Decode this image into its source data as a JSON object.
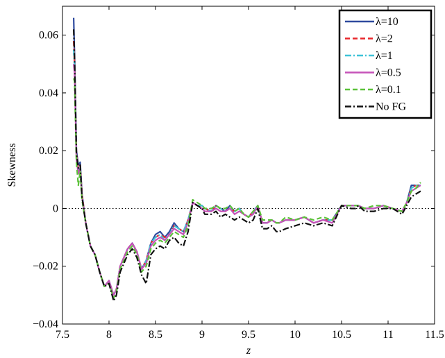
{
  "chart_data": {
    "type": "line",
    "xlabel": "z",
    "ylabel": "Skewness",
    "xlim": [
      7.5,
      11.5
    ],
    "ylim": [
      -0.04,
      0.07
    ],
    "x_ticks": [
      "7.5",
      "8",
      "8.5",
      "9",
      "9.5",
      "10",
      "10.5",
      "11",
      "11.5"
    ],
    "x_tick_values": [
      7.5,
      8,
      8.5,
      9,
      9.5,
      10,
      10.5,
      11,
      11.5
    ],
    "y_ticks": [
      "−0.04",
      "−0.02",
      "0",
      "0.02",
      "0.04",
      "0.06"
    ],
    "y_tick_values": [
      -0.04,
      -0.02,
      0,
      0.02,
      0.04,
      0.06
    ],
    "grid": false,
    "legend_position": "top-right",
    "reference_line": {
      "y": 0,
      "style": "dotted",
      "color": "#000000"
    },
    "series": [
      {
        "name": "λ=10",
        "color": "#2e4a9e",
        "dash": "solid",
        "x": [
          7.62,
          7.63,
          7.65,
          7.67,
          7.69,
          7.71,
          7.75,
          7.8,
          7.85,
          7.9,
          7.95,
          8.0,
          8.05,
          8.08,
          8.12,
          8.2,
          8.25,
          8.3,
          8.35,
          8.4,
          8.45,
          8.5,
          8.55,
          8.6,
          8.65,
          8.7,
          8.75,
          8.8,
          8.85,
          8.9,
          8.95,
          9.0,
          9.03,
          9.1,
          9.15,
          9.2,
          9.25,
          9.3,
          9.35,
          9.4,
          9.45,
          9.5,
          9.55,
          9.6,
          9.65,
          9.7,
          9.75,
          9.8,
          9.83,
          9.9,
          10.0,
          10.1,
          10.2,
          10.3,
          10.4,
          10.5,
          10.6,
          10.65,
          10.68,
          10.75,
          10.85,
          10.95,
          11.05,
          11.15,
          11.2,
          11.25,
          11.3,
          11.35
        ],
        "values": [
          0.066,
          0.053,
          0.02,
          0.015,
          0.016,
          0.005,
          -0.005,
          -0.013,
          -0.016,
          -0.022,
          -0.027,
          -0.025,
          -0.03,
          -0.028,
          -0.02,
          -0.014,
          -0.012,
          -0.015,
          -0.021,
          -0.018,
          -0.012,
          -0.009,
          -0.008,
          -0.01,
          -0.008,
          -0.005,
          -0.007,
          -0.008,
          -0.004,
          0.002,
          0.001,
          0.001,
          0.0,
          -0.001,
          0.001,
          0.0,
          -0.001,
          0.001,
          -0.001,
          0.0,
          -0.002,
          -0.003,
          -0.001,
          0.001,
          -0.005,
          -0.005,
          -0.004,
          -0.005,
          -0.005,
          -0.004,
          -0.004,
          -0.003,
          -0.005,
          -0.004,
          -0.004,
          0.001,
          0.001,
          0.001,
          0.001,
          0.0,
          0.0,
          0.001,
          0.0,
          -0.001,
          0.002,
          0.008,
          0.008,
          0.008
        ]
      },
      {
        "name": "λ=2",
        "color": "#e8262a",
        "dash": "dashed",
        "x": [
          7.62,
          7.63,
          7.65,
          7.67,
          7.69,
          7.71,
          7.75,
          7.8,
          7.85,
          7.9,
          7.95,
          8.0,
          8.05,
          8.08,
          8.12,
          8.2,
          8.25,
          8.3,
          8.35,
          8.4,
          8.45,
          8.5,
          8.55,
          8.6,
          8.65,
          8.7,
          8.75,
          8.8,
          8.85,
          8.9,
          8.95,
          9.0,
          9.03,
          9.1,
          9.15,
          9.2,
          9.25,
          9.3,
          9.35,
          9.4,
          9.45,
          9.5,
          9.55,
          9.6,
          9.65,
          9.7,
          9.75,
          9.8,
          9.83,
          9.9,
          10.0,
          10.1,
          10.2,
          10.3,
          10.4,
          10.5,
          10.6,
          10.65,
          10.68,
          10.75,
          10.85,
          10.95,
          11.05,
          11.15,
          11.2,
          11.25,
          11.3,
          11.35
        ],
        "values": [
          0.058,
          0.05,
          0.019,
          0.014,
          0.015,
          0.005,
          -0.005,
          -0.013,
          -0.016,
          -0.022,
          -0.027,
          -0.025,
          -0.03,
          -0.028,
          -0.02,
          -0.014,
          -0.012,
          -0.015,
          -0.021,
          -0.018,
          -0.012,
          -0.01,
          -0.009,
          -0.01,
          -0.009,
          -0.006,
          -0.007,
          -0.008,
          -0.004,
          0.002,
          0.001,
          0.001,
          0.0,
          -0.001,
          0.001,
          0.0,
          -0.001,
          0.0,
          -0.001,
          0.0,
          -0.002,
          -0.003,
          -0.001,
          0.001,
          -0.005,
          -0.005,
          -0.004,
          -0.005,
          -0.005,
          -0.004,
          -0.004,
          -0.003,
          -0.005,
          -0.004,
          -0.004,
          0.001,
          0.001,
          0.001,
          0.001,
          0.0,
          0.0,
          0.001,
          0.0,
          -0.001,
          0.002,
          0.007,
          0.008,
          0.008
        ]
      },
      {
        "name": "λ=1",
        "color": "#3fc3d8",
        "dash": "dashdot",
        "x": [
          7.62,
          7.63,
          7.65,
          7.67,
          7.69,
          7.71,
          7.75,
          7.8,
          7.85,
          7.9,
          7.95,
          8.0,
          8.05,
          8.08,
          8.12,
          8.2,
          8.25,
          8.3,
          8.35,
          8.4,
          8.45,
          8.5,
          8.55,
          8.6,
          8.65,
          8.7,
          8.75,
          8.8,
          8.85,
          8.9,
          8.95,
          9.0,
          9.03,
          9.1,
          9.15,
          9.2,
          9.25,
          9.3,
          9.35,
          9.4,
          9.45,
          9.5,
          9.55,
          9.6,
          9.65,
          9.7,
          9.75,
          9.8,
          9.83,
          9.9,
          10.0,
          10.1,
          10.2,
          10.3,
          10.4,
          10.5,
          10.6,
          10.65,
          10.68,
          10.75,
          10.85,
          10.95,
          11.05,
          11.15,
          11.2,
          11.25,
          11.3,
          11.35
        ],
        "values": [
          0.055,
          0.049,
          0.018,
          0.013,
          0.015,
          0.004,
          -0.005,
          -0.013,
          -0.016,
          -0.022,
          -0.027,
          -0.025,
          -0.03,
          -0.028,
          -0.02,
          -0.014,
          -0.012,
          -0.015,
          -0.021,
          -0.018,
          -0.012,
          -0.01,
          -0.009,
          -0.011,
          -0.009,
          -0.006,
          -0.007,
          -0.008,
          -0.004,
          0.002,
          0.001,
          0.001,
          0.0,
          -0.001,
          0.001,
          0.0,
          -0.001,
          0.0,
          -0.001,
          0.0,
          -0.002,
          -0.003,
          -0.001,
          0.001,
          -0.005,
          -0.005,
          -0.004,
          -0.005,
          -0.005,
          -0.004,
          -0.004,
          -0.003,
          -0.005,
          -0.004,
          -0.004,
          0.001,
          0.001,
          0.001,
          0.001,
          0.0,
          0.0,
          0.001,
          0.0,
          -0.001,
          0.002,
          0.007,
          0.008,
          0.008
        ]
      },
      {
        "name": "λ=0.5",
        "color": "#c552b8",
        "dash": "solid",
        "x": [
          7.62,
          7.63,
          7.65,
          7.67,
          7.69,
          7.71,
          7.75,
          7.8,
          7.85,
          7.9,
          7.95,
          8.0,
          8.05,
          8.08,
          8.12,
          8.2,
          8.25,
          8.3,
          8.35,
          8.4,
          8.45,
          8.5,
          8.55,
          8.6,
          8.65,
          8.7,
          8.75,
          8.8,
          8.85,
          8.9,
          8.95,
          9.0,
          9.03,
          9.1,
          9.15,
          9.2,
          9.25,
          9.3,
          9.35,
          9.4,
          9.45,
          9.5,
          9.55,
          9.6,
          9.65,
          9.7,
          9.75,
          9.8,
          9.83,
          9.9,
          10.0,
          10.1,
          10.2,
          10.3,
          10.4,
          10.5,
          10.6,
          10.65,
          10.68,
          10.75,
          10.85,
          10.95,
          11.05,
          11.15,
          11.2,
          11.25,
          11.3,
          11.35
        ],
        "values": [
          0.05,
          0.047,
          0.017,
          0.012,
          0.014,
          0.004,
          -0.005,
          -0.013,
          -0.016,
          -0.022,
          -0.027,
          -0.025,
          -0.03,
          -0.028,
          -0.02,
          -0.014,
          -0.012,
          -0.015,
          -0.021,
          -0.019,
          -0.013,
          -0.011,
          -0.01,
          -0.011,
          -0.009,
          -0.007,
          -0.008,
          -0.009,
          -0.005,
          0.002,
          0.001,
          0.0,
          -0.001,
          -0.001,
          0.0,
          -0.001,
          -0.001,
          0.0,
          -0.002,
          -0.001,
          -0.002,
          -0.003,
          -0.002,
          0.001,
          -0.005,
          -0.005,
          -0.004,
          -0.005,
          -0.005,
          -0.004,
          -0.004,
          -0.003,
          -0.005,
          -0.004,
          -0.005,
          0.001,
          0.001,
          0.001,
          0.001,
          0.0,
          0.0,
          0.001,
          0.0,
          -0.001,
          0.002,
          0.006,
          0.007,
          0.008
        ]
      },
      {
        "name": "λ=0.1",
        "color": "#5cc23a",
        "dash": "dashed",
        "x": [
          7.62,
          7.63,
          7.65,
          7.67,
          7.69,
          7.71,
          7.75,
          7.8,
          7.85,
          7.9,
          7.95,
          8.0,
          8.05,
          8.08,
          8.12,
          8.2,
          8.25,
          8.3,
          8.35,
          8.4,
          8.45,
          8.5,
          8.55,
          8.6,
          8.65,
          8.7,
          8.75,
          8.8,
          8.85,
          8.9,
          8.95,
          9.0,
          9.03,
          9.1,
          9.15,
          9.2,
          9.25,
          9.3,
          9.35,
          9.4,
          9.45,
          9.5,
          9.55,
          9.6,
          9.65,
          9.7,
          9.75,
          9.8,
          9.83,
          9.9,
          10.0,
          10.1,
          10.2,
          10.3,
          10.4,
          10.5,
          10.6,
          10.65,
          10.68,
          10.75,
          10.85,
          10.95,
          11.05,
          11.15,
          11.2,
          11.25,
          11.3,
          11.35
        ],
        "values": [
          0.045,
          0.044,
          0.016,
          0.008,
          0.013,
          0.003,
          -0.005,
          -0.013,
          -0.016,
          -0.022,
          -0.027,
          -0.026,
          -0.031,
          -0.029,
          -0.021,
          -0.015,
          -0.013,
          -0.016,
          -0.022,
          -0.02,
          -0.014,
          -0.012,
          -0.011,
          -0.012,
          -0.01,
          -0.008,
          -0.009,
          -0.01,
          -0.006,
          0.003,
          0.002,
          0.001,
          0.0,
          0.0,
          0.001,
          0.0,
          0.0,
          0.001,
          -0.001,
          0.0,
          -0.002,
          -0.003,
          -0.001,
          0.001,
          -0.004,
          -0.004,
          -0.004,
          -0.005,
          -0.005,
          -0.003,
          -0.004,
          -0.003,
          -0.004,
          -0.003,
          -0.004,
          0.001,
          0.001,
          0.001,
          0.001,
          0.0,
          0.001,
          0.001,
          0.0,
          -0.001,
          0.002,
          0.006,
          0.007,
          0.009
        ]
      },
      {
        "name": "No FG",
        "color": "#111111",
        "dash": "dashdot",
        "x": [
          7.62,
          7.63,
          7.65,
          7.67,
          7.69,
          7.71,
          7.75,
          7.8,
          7.85,
          7.9,
          7.95,
          8.0,
          8.05,
          8.08,
          8.12,
          8.2,
          8.25,
          8.3,
          8.35,
          8.4,
          8.45,
          8.5,
          8.55,
          8.6,
          8.65,
          8.7,
          8.75,
          8.8,
          8.85,
          8.9,
          8.95,
          9.0,
          9.03,
          9.1,
          9.15,
          9.2,
          9.25,
          9.3,
          9.35,
          9.4,
          9.45,
          9.5,
          9.55,
          9.6,
          9.65,
          9.7,
          9.75,
          9.8,
          9.83,
          9.9,
          10.0,
          10.1,
          10.2,
          10.3,
          10.4,
          10.5,
          10.6,
          10.65,
          10.68,
          10.75,
          10.85,
          10.95,
          11.05,
          11.15,
          11.2,
          11.25,
          11.3,
          11.35
        ],
        "values": [
          0.062,
          0.052,
          0.019,
          0.014,
          0.015,
          0.004,
          -0.005,
          -0.013,
          -0.016,
          -0.022,
          -0.027,
          -0.026,
          -0.032,
          -0.03,
          -0.022,
          -0.016,
          -0.014,
          -0.017,
          -0.023,
          -0.026,
          -0.016,
          -0.014,
          -0.013,
          -0.014,
          -0.011,
          -0.01,
          -0.012,
          -0.013,
          -0.008,
          0.002,
          0.001,
          0.0,
          -0.002,
          -0.002,
          -0.001,
          -0.003,
          -0.002,
          -0.003,
          -0.004,
          -0.003,
          -0.004,
          -0.005,
          -0.004,
          0.0,
          -0.007,
          -0.007,
          -0.006,
          -0.008,
          -0.008,
          -0.007,
          -0.006,
          -0.005,
          -0.006,
          -0.005,
          -0.006,
          0.001,
          0.0,
          0.0,
          0.001,
          -0.001,
          -0.001,
          0.0,
          0.0,
          -0.002,
          0.001,
          0.004,
          0.005,
          0.006
        ]
      }
    ]
  }
}
